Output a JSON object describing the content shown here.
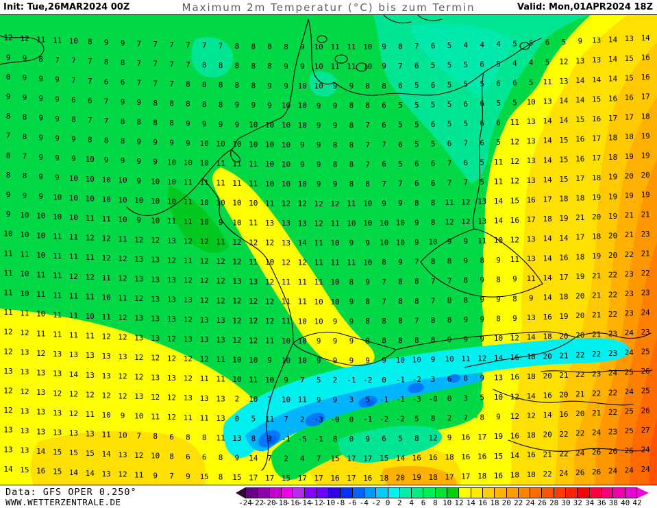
{
  "header": {
    "init_label": "Init: Tue,26MAR2024 00Z",
    "title": "Maximum 2m Temperatur (°C) bis zum Termin",
    "valid_label": "Valid: Mon,01APR2024 18Z"
  },
  "footer": {
    "data_source": "Data: GFS OPER 0.250°",
    "website": "WWW.WETTERZENTRALE.DE"
  },
  "colorbar": {
    "min": -24,
    "max": 42,
    "step": 2,
    "labels": [
      -24,
      -22,
      -20,
      -18,
      -16,
      -14,
      -12,
      -10,
      -8,
      -6,
      -4,
      -2,
      0,
      2,
      4,
      6,
      8,
      10,
      12,
      14,
      16,
      18,
      20,
      22,
      24,
      26,
      28,
      30,
      32,
      34,
      36,
      38,
      40,
      42
    ],
    "segment_colors": [
      "#650087",
      "#8e00ae",
      "#c000cd",
      "#ee00ee",
      "#b32cf0",
      "#8400ff",
      "#6a00ff",
      "#3000e8",
      "#0033ff",
      "#0066ff",
      "#0099ff",
      "#00ccff",
      "#00f2f2",
      "#00eeaa",
      "#00ee80",
      "#00ee55",
      "#00e22e",
      "#00d200",
      "#ffff00",
      "#ffea00",
      "#ffd000",
      "#ffb400",
      "#ff9d00",
      "#ff8400",
      "#ff6c00",
      "#ff5500",
      "#ff3c00",
      "#ff2000",
      "#ff0000",
      "#fb0040",
      "#f6007c",
      "#f100b0",
      "#ec00d8"
    ],
    "left_arrow_color": "#35003f",
    "right_arrow_color": "#ee00dd"
  },
  "map": {
    "colors": {
      "green": "#00d845",
      "green_dark": "#00c81e",
      "mint": "#00e593",
      "mint_light": "#00e9ad",
      "yellow": "#ffff00",
      "gold": "#ffe000",
      "gold_deep": "#ffc800",
      "amber": "#ffb000",
      "orange": "#ff9800",
      "orange_deep": "#ff8000",
      "red_orange": "#ff6a00",
      "red_deep": "#ff5200",
      "cyan": "#00efef",
      "blue_light": "#00b4ff",
      "blue": "#0078ff",
      "blue_deep": "#0060ff",
      "border": "#000000",
      "value_text": "#000000"
    },
    "value_grid": {
      "rows": 23,
      "cols": 40,
      "values": [
        "12 12 11 11 10 8 9 9 7 7 7 7 7 7 8 8 8 8 9 10 11 11 10 9 8 7 6 5 4 4 4 5 5 6 5 9 13 14 13 14",
        "9 9 8 7 7 7 8 8 7 7 7 7 8 8 8 8 8 9 9 10 11 11 10 9 7 6 5 5 5 6 5 4 4 5 12 13 13 14 15 16",
        "0 9 9 9 7 7 6 6 7 7 7 8 8 8 8 8 9 9 10 10 9 9 8 8 6 5 6 5 5 5 6 6 5 11 13 14 14 14 15 16",
        "9 9 9 9 6 6 7 9 9 8 8 8 8 8 9 9 9 10 10 9 9 8 8 6 5 5 5 5 6 6 5 5 10 13 14 14 15 16 16 17",
        "8 8 9 9 8 7 7 8 8 8 8 9 9 9 9 10 10 10 10 9 9 8 7 6 5 5 6 5 5 6 6 11 13 14 14 15 16 17 17 18",
        "7 8 9 9 9 8 8 8 9 9 9 9 10 10 10 10 10 10 9 9 8 8 7 7 6 5 5 6 7 6 5 12 13 14 15 16 17 18 18 19",
        "8 7 9 9 9 10 9 9 9 9 10 10 10 11 11 11 10 10 9 9 8 8 7 6 5 6 6 7 6 5 11 12 13 14 15 16 17 18 19 19",
        "8 8 9 9 10 10 10 10 9 10 10 11 11 11 11 11 10 10 10 9 9 8 8 7 7 6 6 7 7 5 11 12 13 14 15 17 18 19 20 20",
        "9 9 9 10 10 10 10 10 10 10 10 11 10 10 10 10 11 12 12 12 12 11 10 9 9 8 8 11 12 13 14 15 16 17 18 18 19 19 19 19",
        "9 10 10 10 10 11 11 10 9 10 11 11 10 9 10 11 13 13 13 12 11 10 10 10 10 9 8 12 12 13 14 16 17 18 19 21 20 19 21 21",
        "10 10 10 11 11 12 12 11 12 12 13 12 12 11 12 12 12 13 14 11 10 9 9 10 10 9 10 9 9 11 10 12 13 14 14 17 18 20 21 23",
        "11 11 10 11 11 11 12 12 13 13 12 11 12 12 12 11 10 12 12 11 11 11 10 8 9 7 8 8 9 8 9 11 13 14 16 18 19 20 22 21",
        "11 10 11 11 12 12 11 12 13 13 13 12 12 12 13 13 12 11 11 11 10 8 9 7 8 8 7 7 8 9 8 9 11 14 17 19 21 22 23 22",
        "11 10 11 11 11 11 10 11 12 13 13 13 12 12 12 12 12 11 11 10 10 9 8 7 8 8 7 8 8 9 9 8 9 14 18 20 21 22 23 23",
        "11 11 10 11 11 10 11 12 13 13 13 12 13 13 12 12 12 11 10 10 9 9 8 8 8 7 8 8 9 9 8 9 13 16 19 20 21 22 23 24",
        "12 12 11 11 11 11 12 12 13 13 12 13 13 13 12 12 11 10 10 9 9 9 8 8 8 8 8 9 9 9 10 12 14 18 20 20 21 23 24 23",
        "12 13 12 13 13 13 13 13 12 12 12 12 12 11 10 10 9 10 10 9 9 9 9 9 10 10 9 10 11 12 14 16 18 20 21 22 22 23 24 25",
        "13 13 13 13 14 13 13 12 12 13 13 12 11 11 10 11 10 9 7 5 2 -1 -2 0 -1 -2 3 6 8 9 13 16 18 20 21 22 23 24 25 26",
        "12 12 13 12 12 12 12 12 13 12 12 13 13 13 2 10 7 10 11 9 9 3 5 -1 -1 -3 -0 0 3 5 10 12 14 16 20 21 22 22 24 25",
        "12 13 13 13 12 11 10 9 10 11 12 11 11 13 0 5 11 7 2 -3 -0 0 -1 -2 -2 5 8 2 7 8 9 12 12 14 16 20 21 22 25 26",
        "13 13 13 13 13 13 11 10 7 8 6 8 8 11 13 8 3 -1 -5 -1 8 0 9 6 5 8 12 9 16 17 19 16 18 20 22 22 24 23 25 27",
        "13 13 14 15 15 15 14 13 12 10 8 6 6 8 9 14 7 2 4 7 15 17 17 15 14 16 16 18 16 16 15 14 16 21 22 24 26 26 26 24",
        "14 15 16 15 14 14 13 12 11 9 7 9 15 8 15 17 17 15 17 17 16 17 16 18 20 19 18 17 17 18 16 18 18 22 24 26 26 24 24 24"
      ]
    }
  }
}
